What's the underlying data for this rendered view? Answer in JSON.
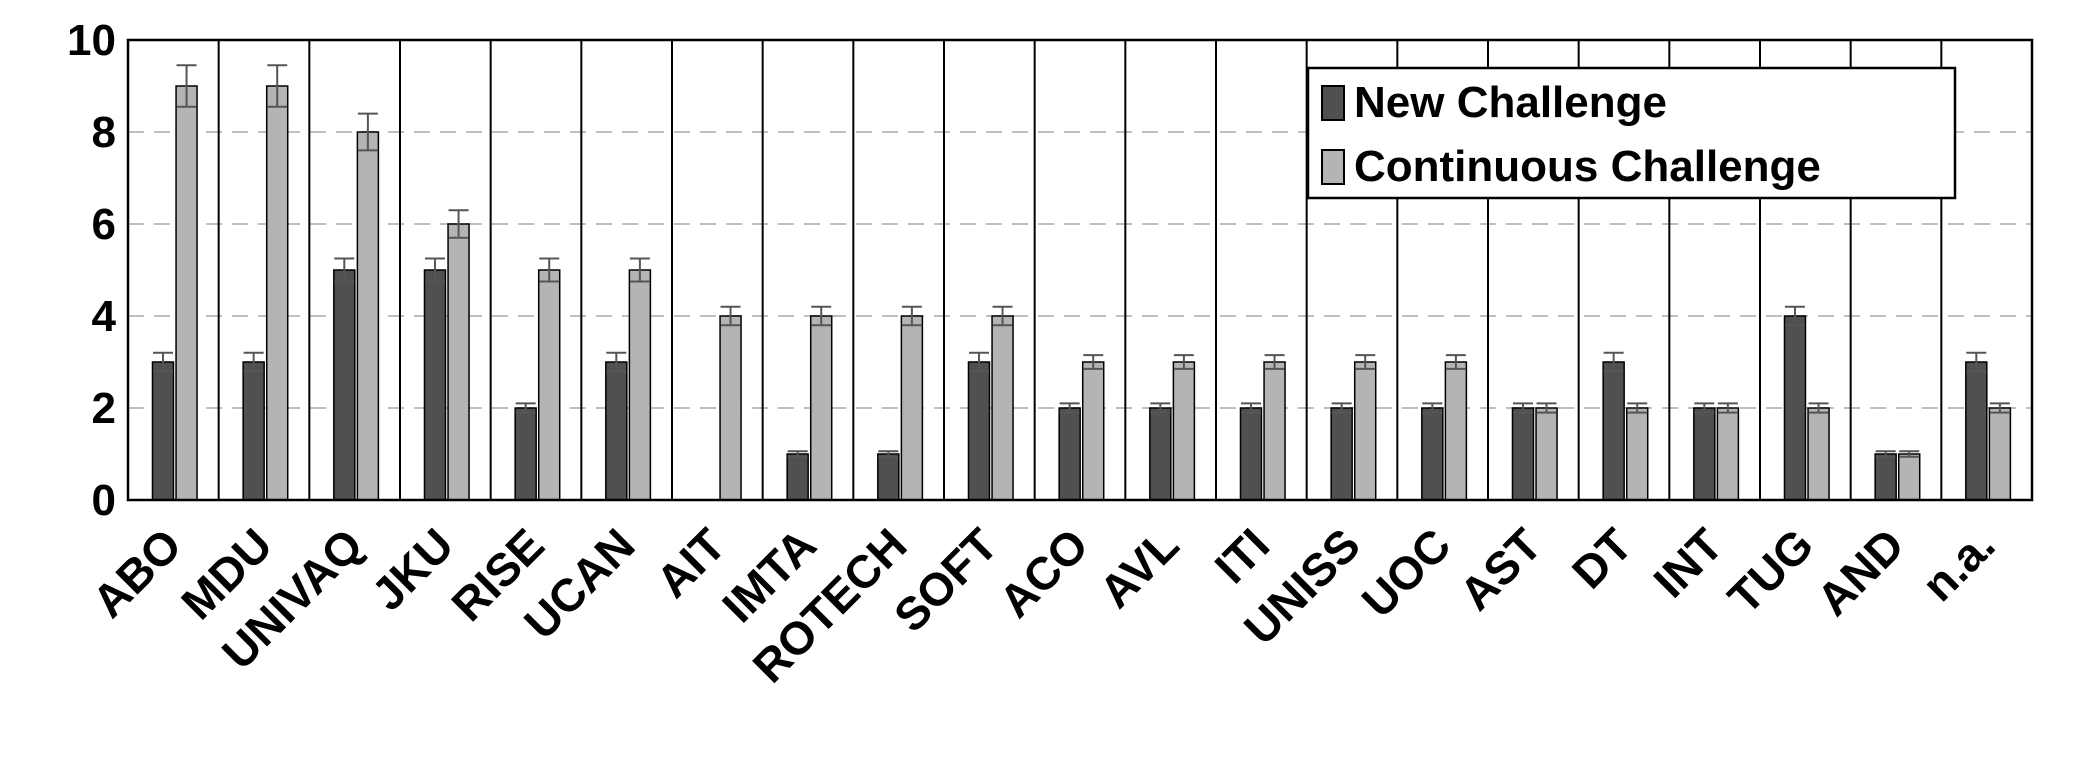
{
  "chart_data": {
    "type": "bar",
    "title": "",
    "xlabel": "",
    "ylabel": "",
    "ylim": [
      0,
      10
    ],
    "yticks": [
      "0",
      "2",
      "4",
      "6",
      "8",
      "10"
    ],
    "grid": "horizontal dashed",
    "legend_position": "top-right",
    "categories": [
      "ABO",
      "MDU",
      "UNIVAQ",
      "JKU",
      "RISE",
      "UCAN",
      "AIT",
      "IMTA",
      "ROTECH",
      "SOFT",
      "ACO",
      "AVL",
      "ITI",
      "UNISS",
      "UOC",
      "AST",
      "DT",
      "INT",
      "TUG",
      "AND",
      "n.a."
    ],
    "series": [
      {
        "name": "New Challenge",
        "color": "#505050",
        "values": [
          3,
          3,
          5,
          5,
          2,
          3,
          0,
          1,
          1,
          3,
          2,
          2,
          2,
          2,
          2,
          2,
          3,
          2,
          4,
          1,
          3
        ],
        "errors": [
          0.2,
          0.2,
          0.25,
          0.25,
          0.1,
          0.2,
          0,
          0.06,
          0.06,
          0.2,
          0.1,
          0.1,
          0.1,
          0.1,
          0.1,
          0.1,
          0.2,
          0.1,
          0.2,
          0.06,
          0.2
        ]
      },
      {
        "name": "Continuous Challenge",
        "color": "#b4b4b4",
        "values": [
          9,
          9,
          8,
          6,
          5,
          5,
          4,
          4,
          4,
          4,
          3,
          3,
          3,
          3,
          3,
          2,
          2,
          2,
          2,
          1,
          2
        ],
        "errors": [
          0.45,
          0.45,
          0.4,
          0.3,
          0.25,
          0.25,
          0.2,
          0.2,
          0.2,
          0.2,
          0.15,
          0.15,
          0.15,
          0.15,
          0.15,
          0.1,
          0.1,
          0.1,
          0.1,
          0.06,
          0.1
        ]
      }
    ]
  }
}
